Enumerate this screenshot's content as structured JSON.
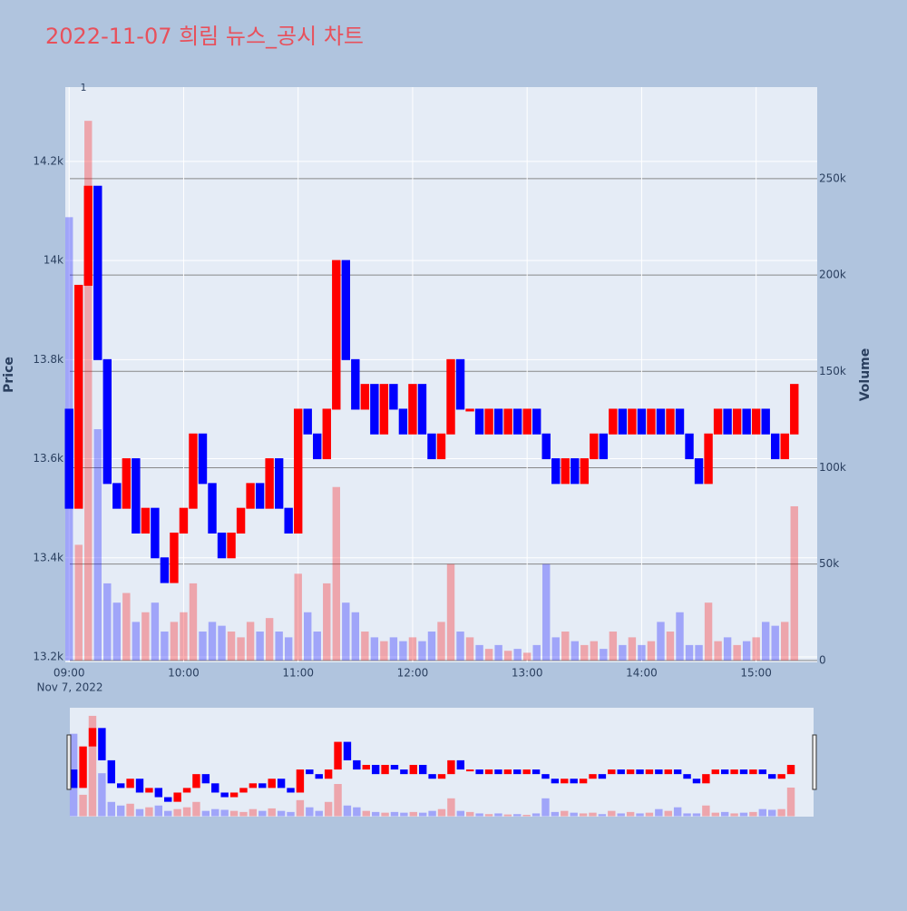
{
  "chart_data": {
    "type": "candlestick",
    "title": "2022-11-07 희림 뉴스_공시 차트",
    "annotation": "1",
    "ylabel": "Price",
    "y2label": "Volume",
    "x_date_label": "Nov 7, 2022",
    "increasing_color": "#ff0000",
    "decreasing_color": "#0000ff",
    "x": [
      "2022-11-07 09:00",
      "2022-11-07 09:05",
      "2022-11-07 09:10",
      "2022-11-07 09:15",
      "2022-11-07 09:20",
      "2022-11-07 09:25",
      "2022-11-07 09:30",
      "2022-11-07 09:35",
      "2022-11-07 09:40",
      "2022-11-07 09:45",
      "2022-11-07 09:50",
      "2022-11-07 09:55",
      "2022-11-07 10:00",
      "2022-11-07 10:05",
      "2022-11-07 10:10",
      "2022-11-07 10:15",
      "2022-11-07 10:20",
      "2022-11-07 10:25",
      "2022-11-07 10:30",
      "2022-11-07 10:35",
      "2022-11-07 10:40",
      "2022-11-07 10:45",
      "2022-11-07 10:50",
      "2022-11-07 10:55",
      "2022-11-07 11:00",
      "2022-11-07 11:05",
      "2022-11-07 11:10",
      "2022-11-07 11:15",
      "2022-11-07 11:20",
      "2022-11-07 11:25",
      "2022-11-07 11:30",
      "2022-11-07 11:35",
      "2022-11-07 11:40",
      "2022-11-07 11:45",
      "2022-11-07 11:50",
      "2022-11-07 11:55",
      "2022-11-07 12:00",
      "2022-11-07 12:05",
      "2022-11-07 12:10",
      "2022-11-07 12:15",
      "2022-11-07 12:20",
      "2022-11-07 12:25",
      "2022-11-07 12:30",
      "2022-11-07 12:35",
      "2022-11-07 12:40",
      "2022-11-07 12:45",
      "2022-11-07 12:50",
      "2022-11-07 12:55",
      "2022-11-07 13:00",
      "2022-11-07 13:05",
      "2022-11-07 13:10",
      "2022-11-07 13:15",
      "2022-11-07 13:20",
      "2022-11-07 13:25",
      "2022-11-07 13:30",
      "2022-11-07 13:35",
      "2022-11-07 13:40",
      "2022-11-07 13:45",
      "2022-11-07 13:50",
      "2022-11-07 13:55",
      "2022-11-07 14:00",
      "2022-11-07 14:05",
      "2022-11-07 14:10",
      "2022-11-07 14:15",
      "2022-11-07 14:20",
      "2022-11-07 14:25",
      "2022-11-07 14:30",
      "2022-11-07 14:35",
      "2022-11-07 14:40",
      "2022-11-07 14:45",
      "2022-11-07 14:50",
      "2022-11-07 14:55",
      "2022-11-07 15:00",
      "2022-11-07 15:05",
      "2022-11-07 15:10",
      "2022-11-07 15:15",
      "2022-11-07 15:20"
    ],
    "open": [
      13700,
      13500,
      13950,
      14150,
      13800,
      13550,
      13500,
      13600,
      13450,
      13500,
      13400,
      13350,
      13450,
      13500,
      13650,
      13550,
      13450,
      13400,
      13450,
      13500,
      13550,
      13500,
      13600,
      13500,
      13450,
      13700,
      13650,
      13600,
      13700,
      14000,
      13800,
      13700,
      13750,
      13650,
      13750,
      13700,
      13650,
      13750,
      13650,
      13600,
      13650,
      13800,
      13700,
      13700,
      13650,
      13700,
      13650,
      13700,
      13650,
      13700,
      13650,
      13600,
      13550,
      13600,
      13550,
      13600,
      13650,
      13650,
      13700,
      13650,
      13700,
      13650,
      13700,
      13650,
      13700,
      13650,
      13600,
      13550,
      13650,
      13700,
      13650,
      13700,
      13650,
      13700,
      13650,
      13600,
      13650
    ],
    "close": [
      13500,
      13950,
      14150,
      13800,
      13550,
      13500,
      13600,
      13450,
      13500,
      13400,
      13350,
      13450,
      13500,
      13650,
      13550,
      13450,
      13400,
      13450,
      13500,
      13550,
      13500,
      13600,
      13500,
      13450,
      13700,
      13650,
      13600,
      13700,
      14000,
      13800,
      13700,
      13750,
      13650,
      13750,
      13700,
      13650,
      13750,
      13650,
      13600,
      13650,
      13800,
      13700,
      13700,
      13650,
      13700,
      13650,
      13700,
      13650,
      13700,
      13650,
      13600,
      13550,
      13600,
      13550,
      13600,
      13650,
      13600,
      13700,
      13650,
      13700,
      13650,
      13700,
      13650,
      13700,
      13650,
      13600,
      13550,
      13650,
      13700,
      13650,
      13700,
      13650,
      13700,
      13650,
      13600,
      13650,
      13750
    ],
    "volume": [
      230000,
      60000,
      280000,
      120000,
      40000,
      30000,
      35000,
      20000,
      25000,
      30000,
      15000,
      20000,
      25000,
      40000,
      15000,
      20000,
      18000,
      15000,
      12000,
      20000,
      15000,
      22000,
      15000,
      12000,
      45000,
      25000,
      15000,
      40000,
      90000,
      30000,
      25000,
      15000,
      12000,
      10000,
      12000,
      10000,
      12000,
      10000,
      15000,
      20000,
      50000,
      15000,
      12000,
      8000,
      6000,
      8000,
      5000,
      6000,
      4000,
      8000,
      50000,
      12000,
      15000,
      10000,
      8000,
      10000,
      6000,
      15000,
      8000,
      12000,
      8000,
      10000,
      20000,
      15000,
      25000,
      8000,
      8000,
      30000,
      10000,
      12000,
      8000,
      10000,
      12000,
      20000,
      18000,
      20000,
      80000
    ],
    "xlim": [
      "2022-11-07 08:58",
      "2022-11-07 15:32"
    ],
    "xticks": [
      {
        "value": "2022-11-07 09:00",
        "label": "09:00"
      },
      {
        "value": "2022-11-07 10:00",
        "label": "10:00"
      },
      {
        "value": "2022-11-07 11:00",
        "label": "11:00"
      },
      {
        "value": "2022-11-07 12:00",
        "label": "12:00"
      },
      {
        "value": "2022-11-07 13:00",
        "label": "13:00"
      },
      {
        "value": "2022-11-07 14:00",
        "label": "14:00"
      },
      {
        "value": "2022-11-07 15:00",
        "label": "15:00"
      }
    ],
    "ylim": [
      13189,
      14350
    ],
    "yticks": [
      {
        "value": 13200,
        "label": "13.2k"
      },
      {
        "value": 13400,
        "label": "13.4k"
      },
      {
        "value": 13600,
        "label": "13.6k"
      },
      {
        "value": 13800,
        "label": "13.8k"
      },
      {
        "value": 14000,
        "label": "14k"
      },
      {
        "value": 14200,
        "label": "14.2k"
      }
    ],
    "y2lim": [
      -1000,
      297500
    ],
    "y2ticks": [
      0,
      {
        "value": 50000,
        "label": "50k"
      },
      {
        "value": 100000,
        "label": "100k"
      },
      {
        "value": 150000,
        "label": "150k"
      },
      {
        "value": 200000,
        "label": "200k"
      },
      {
        "value": 250000,
        "label": "250k"
      }
    ],
    "grid": true,
    "rangeslider": true
  }
}
